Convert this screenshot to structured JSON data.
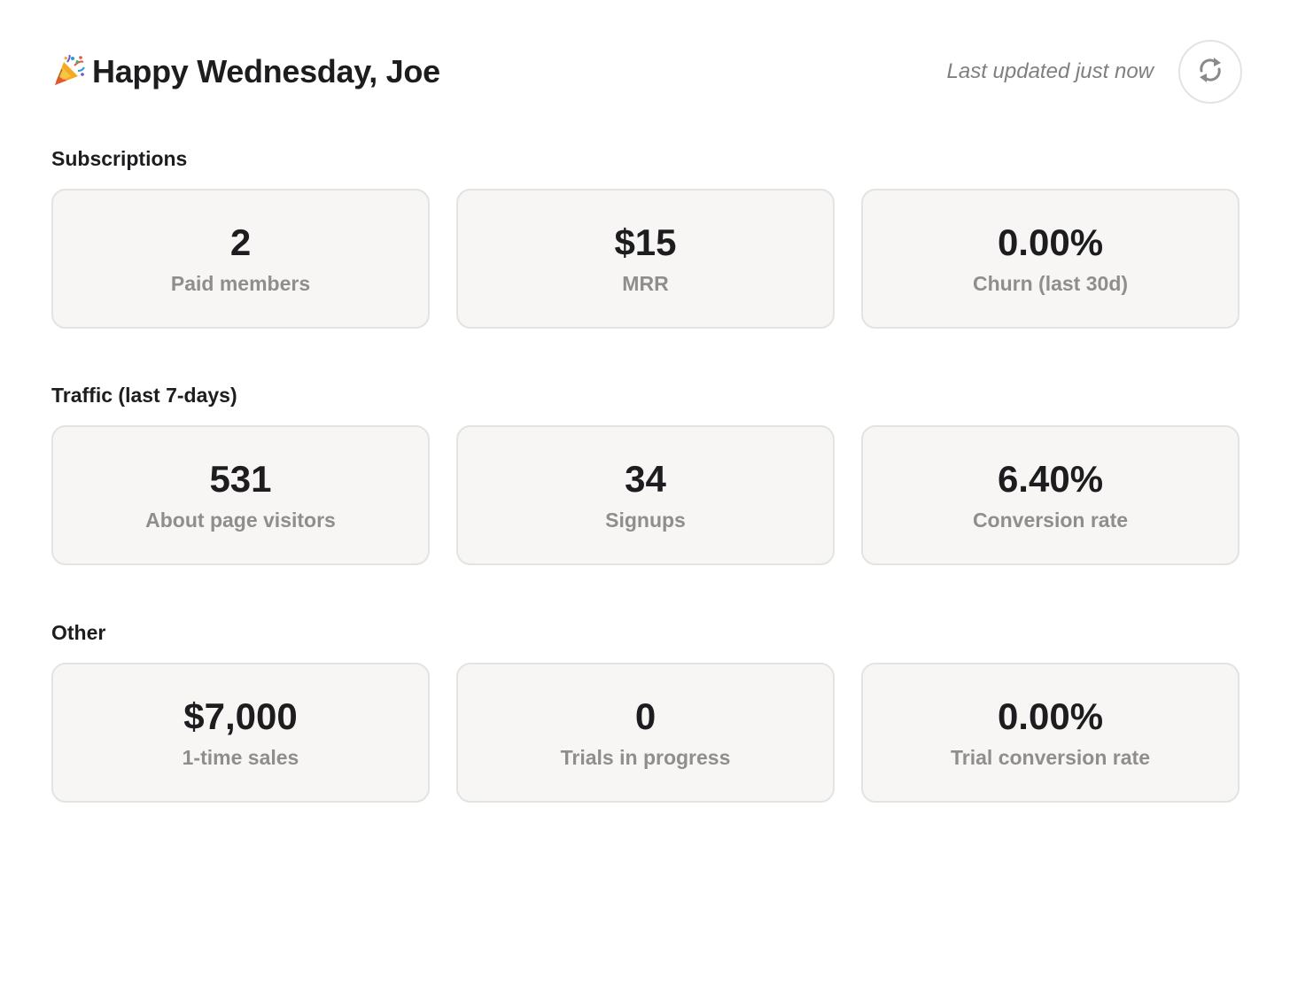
{
  "header": {
    "emoji": "🎉",
    "greeting": "Happy Wednesday, Joe",
    "last_updated": "Last updated just now",
    "refresh_icon": "refresh-icon"
  },
  "sections": [
    {
      "title": "Subscriptions",
      "cards": [
        {
          "value": "2",
          "label": "Paid members"
        },
        {
          "value": "$15",
          "label": "MRR"
        },
        {
          "value": "0.00%",
          "label": "Churn (last 30d)"
        }
      ]
    },
    {
      "title": "Traffic (last 7-days)",
      "cards": [
        {
          "value": "531",
          "label": "About page visitors"
        },
        {
          "value": "34",
          "label": "Signups"
        },
        {
          "value": "6.40%",
          "label": "Conversion rate"
        }
      ]
    },
    {
      "title": "Other",
      "cards": [
        {
          "value": "$7,000",
          "label": "1-time sales"
        },
        {
          "value": "0",
          "label": "Trials in progress"
        },
        {
          "value": "0.00%",
          "label": "Trial conversion rate"
        }
      ]
    }
  ],
  "colors": {
    "card_background": "#f7f6f4",
    "card_border": "#e3e3e1",
    "value_text": "#1d1d1f",
    "label_text": "#8e8e8e",
    "muted_text": "#7f7f7f"
  }
}
